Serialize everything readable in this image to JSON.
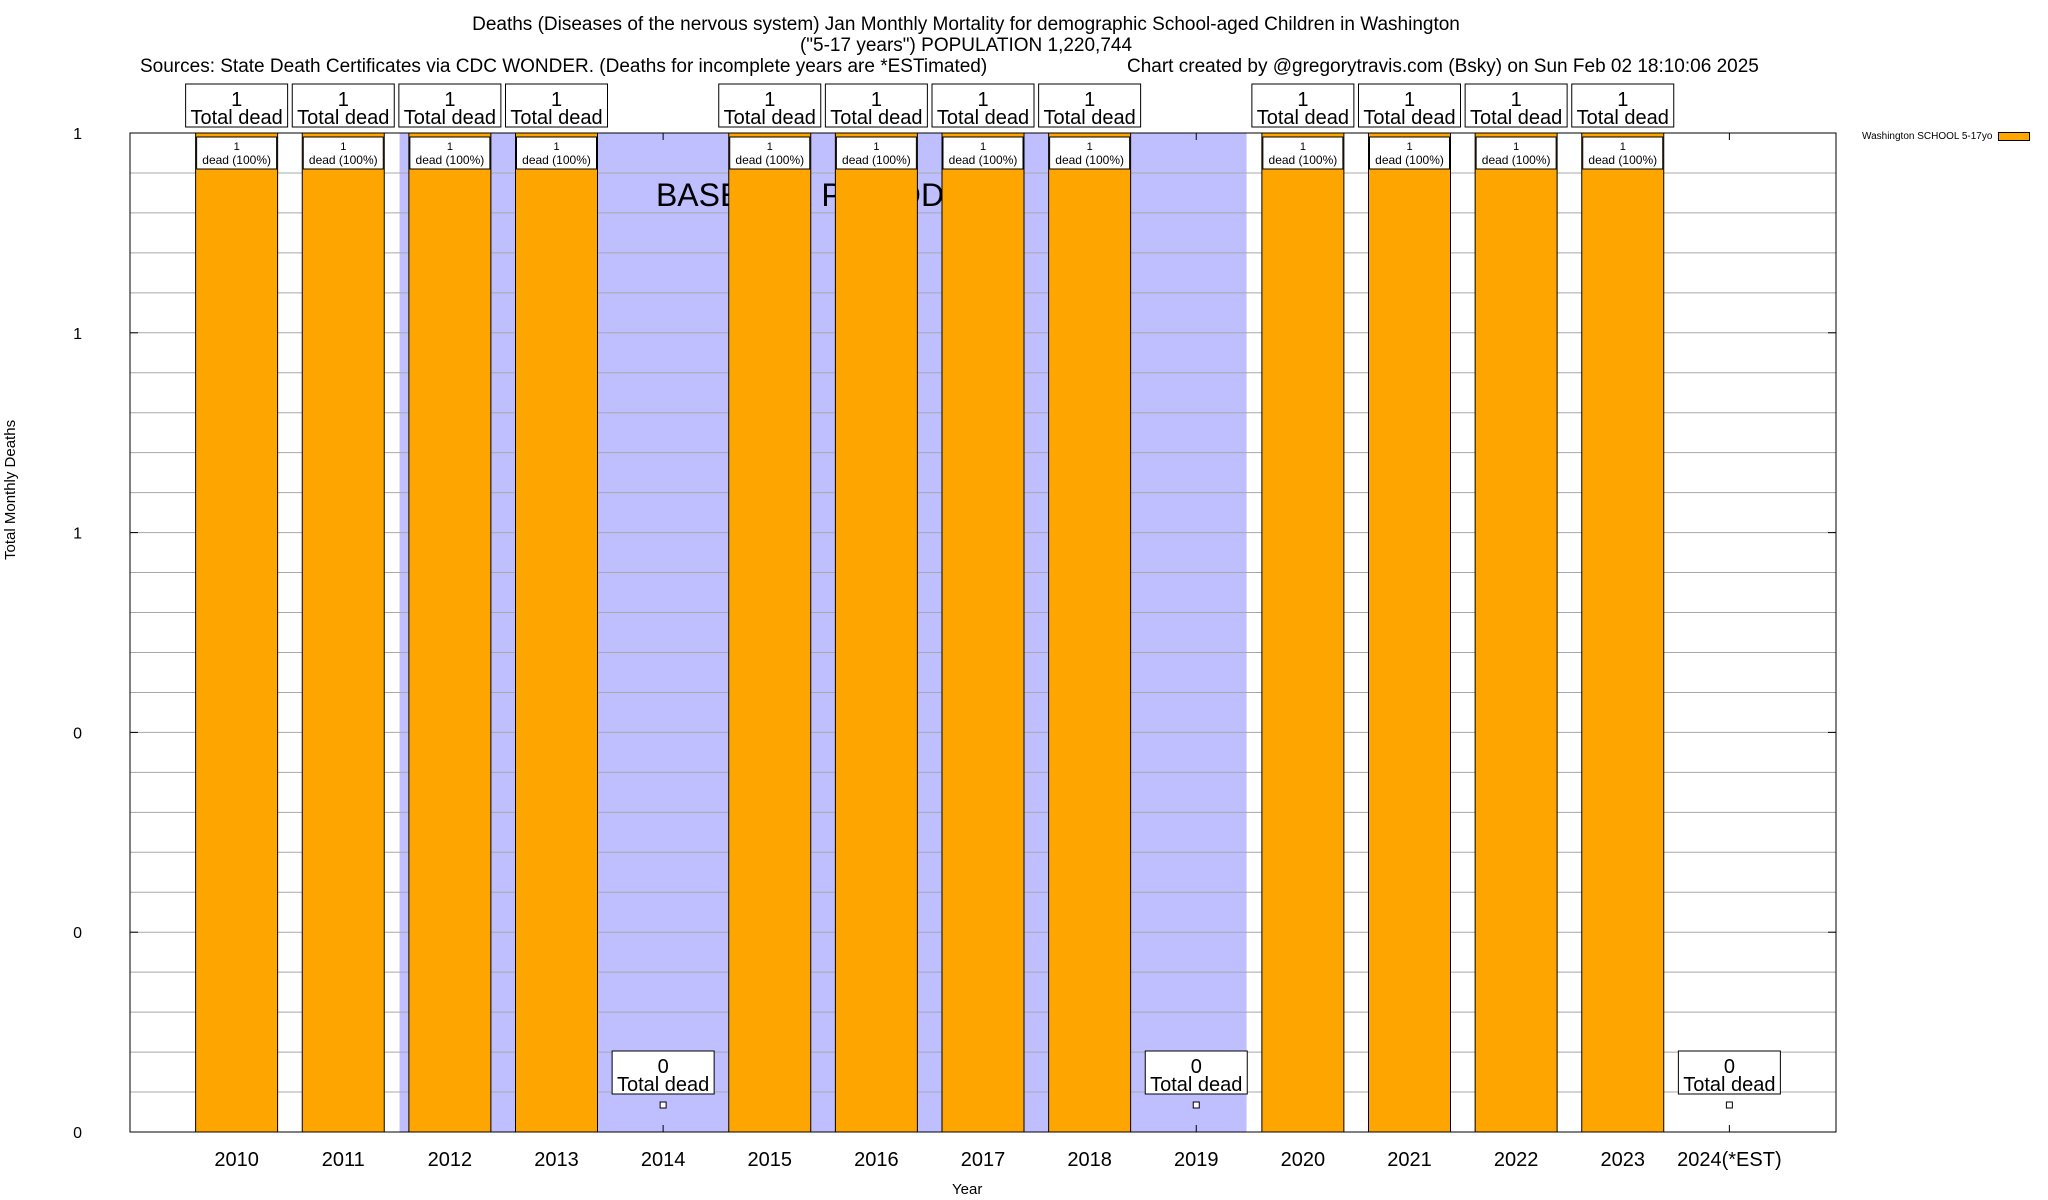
{
  "chart_data": {
    "type": "bar",
    "title_line1": "Deaths (Diseases of the nervous system) Jan Monthly Mortality for demographic School-aged Children in Washington",
    "title_line2": "(\"5-17 years\") POPULATION 1,220,744",
    "sources": "Sources: State Death Certificates via CDC WONDER. (Deaths for incomplete years are *ESTimated)",
    "credit": "Chart created by @gregorytravis.com (Bsky) on Sun Feb 02 18:10:06 2025",
    "ylabel": "Total Monthly Deaths",
    "xlabel": "Year",
    "ylim": [
      0,
      1
    ],
    "ytick_values": [
      0,
      0.2,
      0.4,
      0.6,
      0.8,
      1.0
    ],
    "ytick_labels": [
      "0",
      "0",
      "0",
      "1",
      "1",
      "1"
    ],
    "categories": [
      "2010",
      "2011",
      "2012",
      "2013",
      "2014",
      "2015",
      "2016",
      "2017",
      "2018",
      "2019",
      "2020",
      "2021",
      "2022",
      "2023",
      "2024(*EST)"
    ],
    "series": [
      {
        "name": "Washington SCHOOL 5-17yo",
        "color": "#ffa500",
        "values": [
          1,
          1,
          1,
          1,
          0,
          1,
          1,
          1,
          1,
          0,
          1,
          1,
          1,
          1,
          0
        ]
      }
    ],
    "total_labels": [
      "1",
      "1",
      "1",
      "1",
      "0",
      "1",
      "1",
      "1",
      "1",
      "0",
      "1",
      "1",
      "1",
      "1",
      "0"
    ],
    "total_suffix": "Total dead",
    "inner_label_count": "1",
    "inner_label_pct": "dead (100%)",
    "baseline_label": "BASELINE PERIOD",
    "baseline_range": [
      "2012",
      "2019"
    ],
    "baseline_color": "#bfbfff",
    "legend_position": "top-right"
  }
}
